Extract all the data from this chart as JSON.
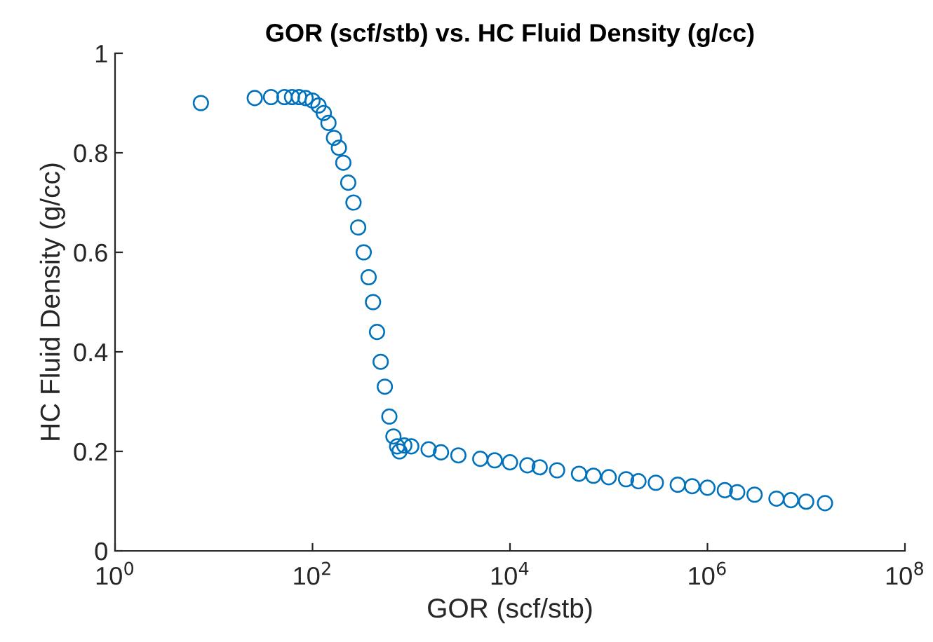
{
  "chart_data": {
    "type": "scatter",
    "title": "GOR (scf/stb) vs. HC Fluid Density (g/cc)",
    "xlabel": "GOR (scf/stb)",
    "ylabel": "HC Fluid Density (g/cc)",
    "log": "x",
    "marker": "circle",
    "grid": false,
    "legend": false,
    "xlim": [
      1,
      100000000
    ],
    "ylim": [
      0,
      1
    ],
    "xticks": [
      {
        "value": 1,
        "label": "10$^{0}$"
      },
      {
        "value": 100,
        "label": "10$^{2}$"
      },
      {
        "value": 10000,
        "label": "10$^{4}$"
      },
      {
        "value": 1000000,
        "label": "10$^{6}$"
      },
      {
        "value": 100000000,
        "label": "10$^{8}$"
      }
    ],
    "yticks": [
      0,
      0.2,
      0.4,
      0.6,
      0.8,
      1
    ],
    "series": [
      {
        "color": "#0072bd",
        "x": [
          7.4,
          26,
          38,
          52,
          62,
          73,
          85,
          100,
          115,
          130,
          145,
          165,
          185,
          205,
          230,
          260,
          290,
          330,
          370,
          410,
          450,
          490,
          540,
          600,
          660,
          720,
          760,
          850,
          1000,
          1500,
          2000,
          3000,
          5000,
          7000,
          10000,
          15000,
          20000,
          30000,
          50000,
          70000,
          100000,
          150000,
          200000,
          300000,
          500000,
          700000,
          1000000,
          1500000,
          2000000,
          3000000,
          5000000,
          7000000,
          10000000,
          15500000
        ],
        "values": [
          0.9,
          0.91,
          0.912,
          0.912,
          0.912,
          0.912,
          0.91,
          0.905,
          0.895,
          0.88,
          0.86,
          0.83,
          0.81,
          0.78,
          0.74,
          0.7,
          0.65,
          0.6,
          0.55,
          0.5,
          0.44,
          0.38,
          0.33,
          0.27,
          0.23,
          0.21,
          0.2,
          0.212,
          0.21,
          0.204,
          0.198,
          0.192,
          0.185,
          0.182,
          0.178,
          0.172,
          0.168,
          0.162,
          0.155,
          0.151,
          0.148,
          0.144,
          0.14,
          0.137,
          0.133,
          0.13,
          0.127,
          0.122,
          0.118,
          0.113,
          0.105,
          0.102,
          0.099,
          0.096
        ]
      }
    ]
  }
}
